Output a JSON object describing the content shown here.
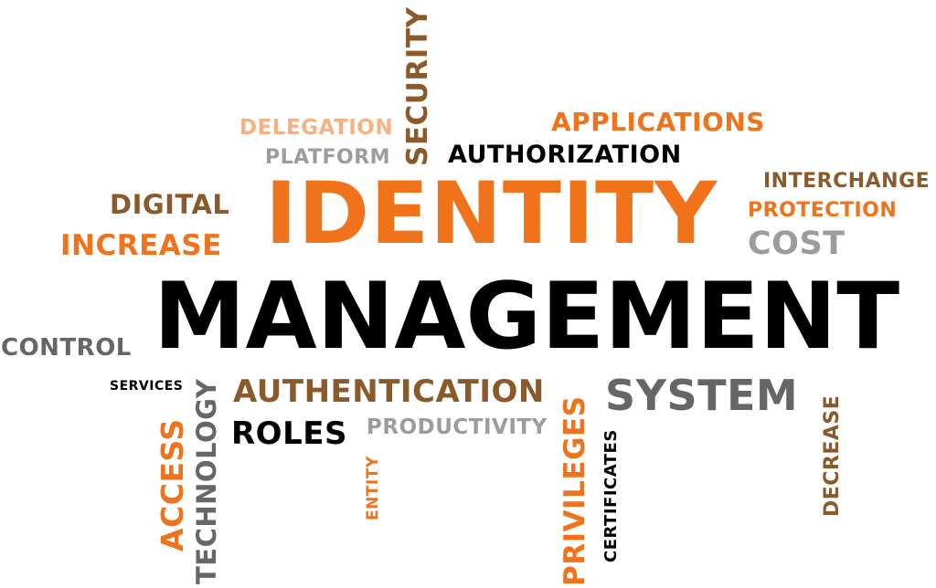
{
  "words": {
    "identity": "IDENTITY",
    "management": "MANAGEMENT",
    "security": "SECURITY",
    "delegation": "DELEGATION",
    "platform": "PLATFORM",
    "applications": "APPLICATIONS",
    "authorization": "AUTHORIZATION",
    "digital": "DIGITAL",
    "increase": "INCREASE",
    "interchange": "INTERCHANGE",
    "protection": "PROTECTION",
    "cost": "COST",
    "control": "CONTROL",
    "services": "SERVICES",
    "authentication": "AUTHENTICATION",
    "roles": "ROLES",
    "productivity": "PRODUCTIVITY",
    "system": "SYSTEM",
    "access": "ACCESS",
    "technology": "TECHNOLOGY",
    "entity": "ENTITY",
    "privileges": "PRIVILEGES",
    "certificates": "CERTIFICATES",
    "decrease": "DECREASE"
  },
  "colors": {
    "orange": "#f0731c",
    "brown": "#8b5a2b",
    "peach": "#f5b183",
    "gray": "#9c9c9c",
    "dark_gray": "#666666",
    "black": "#000000"
  }
}
